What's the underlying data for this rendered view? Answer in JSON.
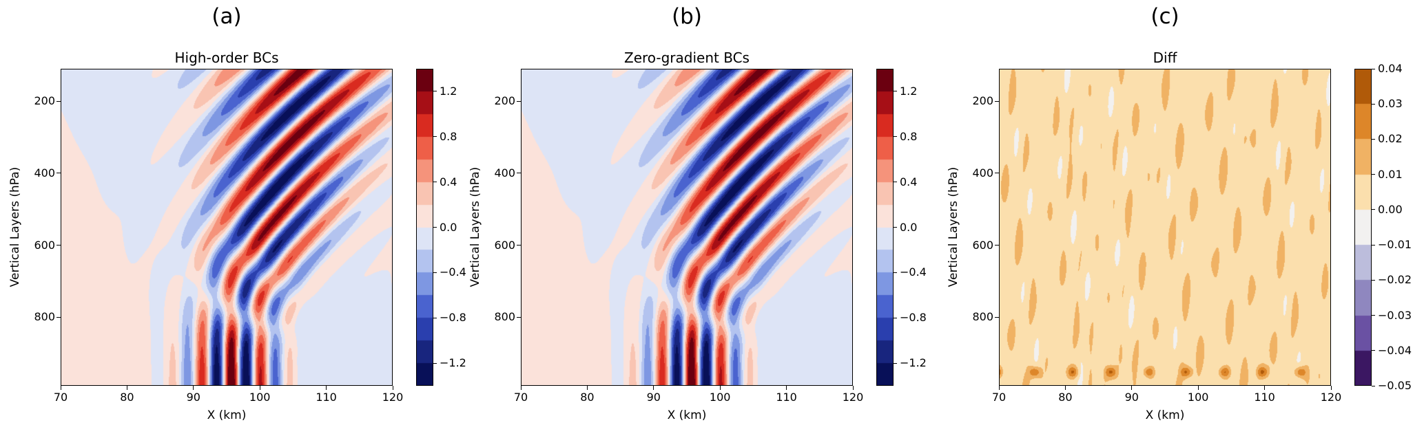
{
  "panels": [
    {
      "fig_label": "(a)",
      "title": "High-order BCs"
    },
    {
      "fig_label": "(b)",
      "title": "Zero-gradient BCs"
    },
    {
      "fig_label": "(c)",
      "title": "Diff"
    }
  ],
  "axes": {
    "xlabel": "X (km)",
    "ylabel": "Vertical Layers (hPa)",
    "x_tick_labels": [
      "70",
      "80",
      "90",
      "100",
      "110",
      "120"
    ],
    "x_tick_values": [
      70,
      80,
      90,
      100,
      110,
      120
    ],
    "y_tick_labels": [
      "200",
      "400",
      "600",
      "800"
    ],
    "y_tick_values": [
      200,
      400,
      600,
      800
    ]
  },
  "chart_data": [
    {
      "type": "heatmap",
      "title": "High-order BCs",
      "xlabel": "X (km)",
      "ylabel": "Vertical Layers (hPa)",
      "x_range": [
        70,
        120
      ],
      "y_range": [
        110,
        990
      ],
      "y_inverted": true,
      "grid": false,
      "levels": {
        "min": -1.4,
        "max": 1.4,
        "step": 0.2
      },
      "colorbar_ticks": [
        1.2,
        0.8,
        0.4,
        0.0,
        -0.4,
        -0.8,
        -1.2
      ],
      "colorbar_tick_labels": [
        "1.2",
        "0.8",
        "0.4",
        "0.0",
        "−0.4",
        "−0.8",
        "−1.2"
      ],
      "colors": [
        "#081058",
        "#18257e",
        "#2a3fae",
        "#4a63cf",
        "#7e97e2",
        "#b3c3ef",
        "#dde4f6",
        "#fbe2da",
        "#f9c4b2",
        "#f5937b",
        "#ee5f48",
        "#d92b20",
        "#a60f16",
        "#6b0010"
      ],
      "description": "Vertically propagating mountain-wave field: narrow alternating red/blue columns (|w|>1.2) near x=90-102 km at the lowest levels (800-990 hPa), broadening tilted red/blue lobes aloft that shift rightward with height, amplitude about +/-1.2 near 100-250 hPa around x=95-112 km; weak pale-pink/pale-blue background elsewhere.",
      "field_model": {
        "kind": "wave",
        "bg": {
          "amp": 0.055,
          "kx": 0.085,
          "kh": 2.0,
          "phase": 1.4
        },
        "bottom": {
          "amp": 1.6,
          "hscale": 0.27,
          "k": 1.396,
          "x0": 95.7,
          "xc": 96,
          "xsigma": 6.8
        },
        "wave": {
          "amp": 1.35,
          "ramp_start": 0.05,
          "ramp_len": 0.5,
          "lam0": 4.5,
          "lam1": 6.5,
          "kh": 28.6,
          "phase": 3.7,
          "x0": 96,
          "xc0": 96,
          "xc1": 11,
          "sig0": 5.5,
          "sig1": 7.5
        }
      }
    },
    {
      "type": "heatmap",
      "title": "Zero-gradient BCs",
      "xlabel": "X (km)",
      "ylabel": "Vertical Layers (hPa)",
      "x_range": [
        70,
        120
      ],
      "y_range": [
        110,
        990
      ],
      "y_inverted": true,
      "grid": false,
      "levels": {
        "min": -1.4,
        "max": 1.4,
        "step": 0.2
      },
      "colorbar_ticks": [
        1.2,
        0.8,
        0.4,
        0.0,
        -0.4,
        -0.8,
        -1.2
      ],
      "colorbar_tick_labels": [
        "1.2",
        "0.8",
        "0.4",
        "0.0",
        "−0.4",
        "−0.8",
        "−1.2"
      ],
      "colors": [
        "#081058",
        "#18257e",
        "#2a3fae",
        "#4a63cf",
        "#7e97e2",
        "#b3c3ef",
        "#dde4f6",
        "#fbe2da",
        "#f9c4b2",
        "#f5937b",
        "#ee5f48",
        "#d92b20",
        "#a60f16",
        "#6b0010"
      ],
      "description": "Visually indistinguishable from panel (a): same mountain-wave pattern with bottom columns near x=90-102 km and tilted lobes aloft; differences from panel (a) are at the 0.01 level shown in panel (c).",
      "field_model": {
        "kind": "wave",
        "bg": {
          "amp": 0.055,
          "kx": 0.085,
          "kh": 2.0,
          "phase": 1.4
        },
        "bottom": {
          "amp": 1.6,
          "hscale": 0.27,
          "k": 1.396,
          "x0": 95.7,
          "xc": 96,
          "xsigma": 6.8
        },
        "wave": {
          "amp": 1.35,
          "ramp_start": 0.05,
          "ramp_len": 0.5,
          "lam0": 4.5,
          "lam1": 6.5,
          "kh": 28.6,
          "phase": 3.7,
          "x0": 96,
          "xc0": 96,
          "xc1": 11,
          "sig0": 5.5,
          "sig1": 7.5
        }
      }
    },
    {
      "type": "heatmap",
      "title": "Diff",
      "xlabel": "X (km)",
      "ylabel": "Vertical Layers (hPa)",
      "x_range": [
        70,
        120
      ],
      "y_range": [
        110,
        990
      ],
      "y_inverted": true,
      "grid": false,
      "levels": {
        "min": -0.05,
        "max": 0.04,
        "step": 0.01
      },
      "colorbar_ticks": [
        0.04,
        0.03,
        0.02,
        0.01,
        0.0,
        -0.01,
        -0.02,
        -0.03,
        -0.04,
        -0.05
      ],
      "colorbar_tick_labels": [
        "0.04",
        "0.03",
        "0.02",
        "0.01",
        "0.00",
        "−0.01",
        "−0.02",
        "−0.03",
        "−0.04",
        "−0.05"
      ],
      "colors": [
        "#3b1762",
        "#6a51a3",
        "#8f87bf",
        "#bcbddc",
        "#f2f1f0",
        "#fbdfad",
        "#f0b264",
        "#dd8629",
        "#b05a09"
      ],
      "description": "Difference field dominated by small positive values near +0.005 (light orange) with vertically elongated near-zero white speckle patches; a few darker orange spots (~+0.02 to +0.03) along the bottom boundary near 950-990 hPa.",
      "field_model": {
        "kind": "noise",
        "base": 0.006,
        "namp": 0.0055,
        "waves": [
          [
            1.9,
            0.011,
            1.3
          ],
          [
            1.13,
            -0.017,
            4.1
          ],
          [
            0.61,
            0.029,
            2.2
          ],
          [
            2.7,
            0.008,
            0.7
          ]
        ],
        "norm": 2.6,
        "bottom_spots": {
          "amp": 0.026,
          "p0": 952,
          "psig": 16,
          "k": 1.1,
          "phase": 0.3
        }
      }
    }
  ]
}
